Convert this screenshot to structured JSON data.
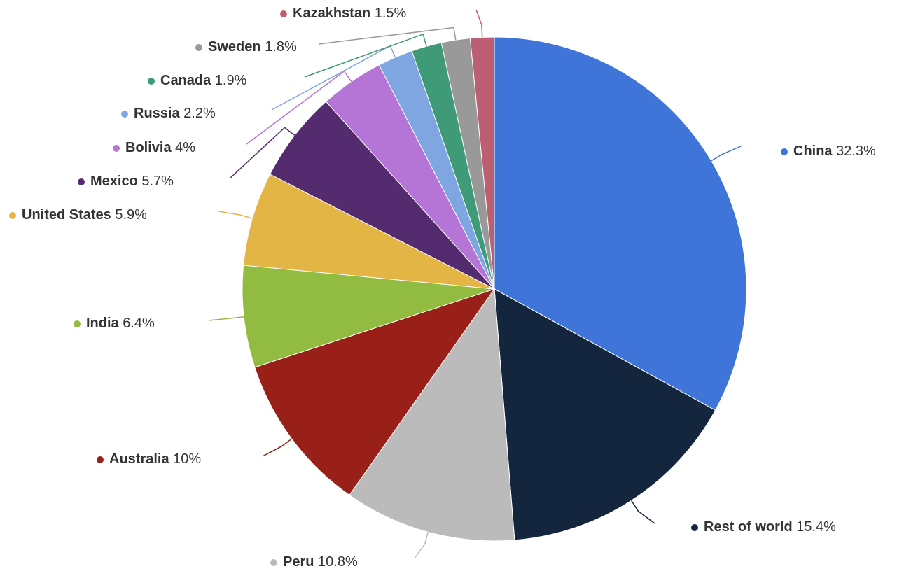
{
  "chart_data": {
    "type": "pie",
    "categories": [
      "China",
      "Rest of world",
      "Peru",
      "Australia",
      "India",
      "United States",
      "Mexico",
      "Bolivia",
      "Russia",
      "Canada",
      "Sweden",
      "Kazakhstan"
    ],
    "values": [
      32.3,
      15.4,
      10.8,
      10,
      6.4,
      5.9,
      5.7,
      4,
      2.2,
      1.9,
      1.8,
      1.5
    ],
    "value_labels": [
      "32.3%",
      "15.4%",
      "10.8%",
      "10%",
      "6.4%",
      "5.9%",
      "5.7%",
      "4%",
      "2.2%",
      "1.9%",
      "1.8%",
      "1.5%"
    ],
    "colors": [
      "#3f74d8",
      "#14253e",
      "#bbbbbb",
      "#982018",
      "#92bb42",
      "#e3b545",
      "#552b6f",
      "#b575d6",
      "#7fa6e0",
      "#3f9a77",
      "#999999",
      "#bd5f72"
    ]
  }
}
